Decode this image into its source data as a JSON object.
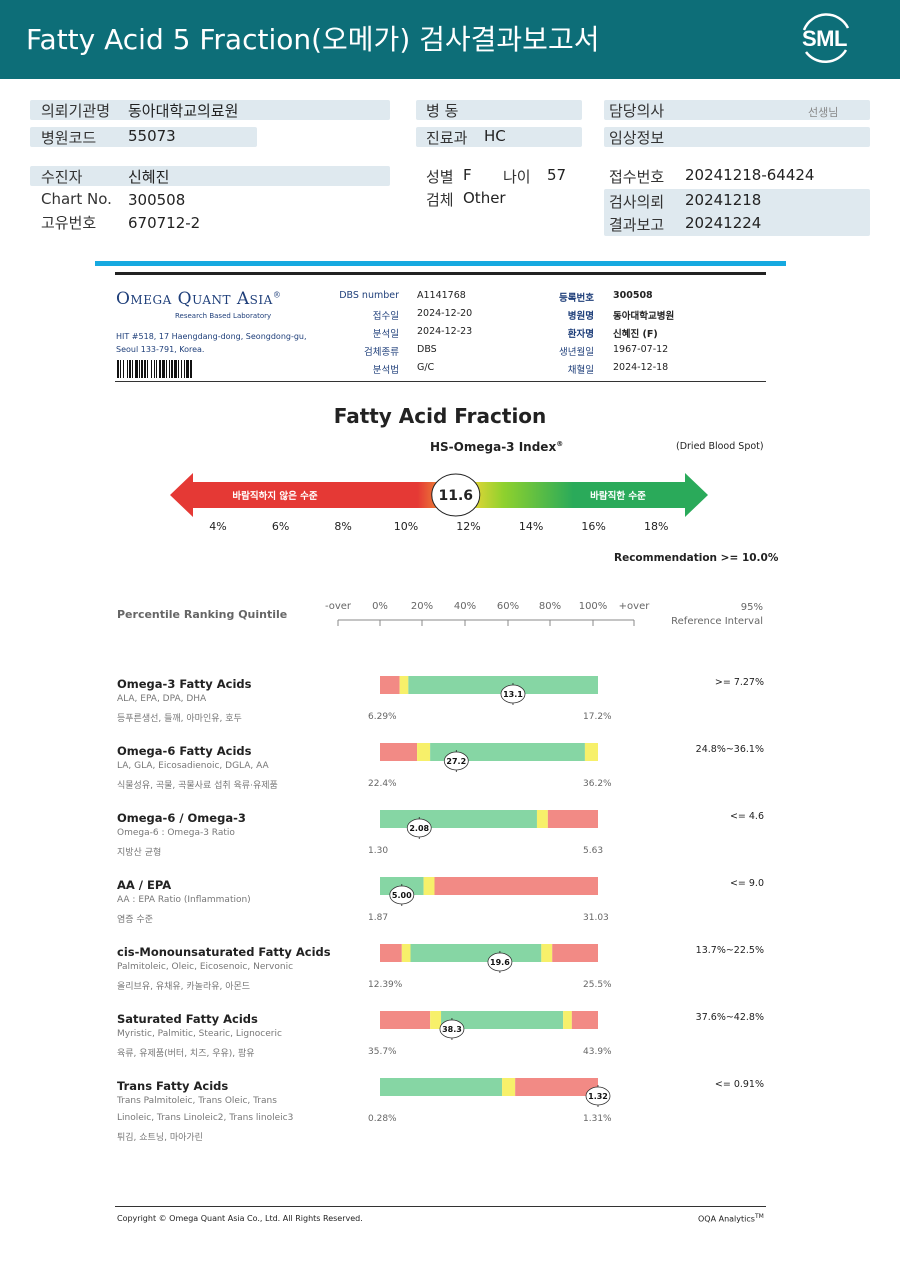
{
  "header": {
    "title": "Fatty Acid 5 Fraction(오메가) 검사결과보고서",
    "logo_text": "SML",
    "background": "#0d6e78"
  },
  "patient": {
    "institution_label": "의뢰기관명",
    "institution_value": "동아대학교의료원",
    "hospital_code_label": "병원코드",
    "hospital_code_value": "55073",
    "ward_label": "병  동",
    "department_label": "진료과",
    "department_value": "HC",
    "doctor_label": "담당의사",
    "doctor_suffix": "선생님",
    "clinical_label": "임상정보",
    "recipient_label": "수진자",
    "recipient_value": "신혜진",
    "chart_label": "Chart No.",
    "chart_value": "300508",
    "unique_label": "고유번호",
    "unique_value": "670712-2",
    "sex_label": "성별",
    "sex_value": "F",
    "age_label": "나이",
    "age_value": "57",
    "specimen_label": "검체",
    "specimen_value": "Other",
    "receipt_label": "접수번호",
    "receipt_value": "20241218-64424",
    "request_label": "검사의뢰",
    "request_value": "20241218",
    "report_label": "결과보고",
    "report_value": "20241224"
  },
  "lab": {
    "name": "Omega Quant Asia",
    "mark": "®",
    "tagline": "Research Based Laboratory",
    "address": "HIT #518, 17 Haengdang-dong, Seongdong-gu, Seoul 133-791, Korea."
  },
  "meta": {
    "dbs_label": "DBS number",
    "dbs_value": "A1141768",
    "received_label": "접수일",
    "received_value": "2024-12-20",
    "analyzed_label": "분석일",
    "analyzed_value": "2024-12-23",
    "specimen_label": "검체종류",
    "specimen_value": "DBS",
    "method_label": "분석법",
    "method_value": "G/C",
    "regno_label": "등록번호",
    "regno_value": "300508",
    "hospital_label": "병원명",
    "hospital_value": "동아대학교병원",
    "patient_label": "환자명",
    "patient_value": "신혜진 (F)",
    "dob_label": "생년월일",
    "dob_value": "1967-07-12",
    "collected_label": "채혈일",
    "collected_value": "2024-12-18"
  },
  "index": {
    "title": "Fatty Acid Fraction",
    "subtitle": "HS-Omega-3 Index",
    "subtitle_mark": "®",
    "note": "(Dried Blood Spot)",
    "value": "11.6",
    "value_num": 11.6,
    "bad_label": "바람직하지 않은 수준",
    "good_label": "바람직한 수준",
    "ticks": [
      "4%",
      "6%",
      "8%",
      "10%",
      "12%",
      "14%",
      "16%",
      "18%"
    ],
    "tick_values": [
      4,
      6,
      8,
      10,
      12,
      14,
      16,
      18
    ],
    "recommendation": "Recommendation  >= 10.0%",
    "colors": {
      "red": "#e53935",
      "yellow": "#f5e63a",
      "green": "#2aaa5a"
    }
  },
  "quintile": {
    "label": "Percentile Ranking Quintile",
    "ticks": [
      "-over",
      "0%",
      "20%",
      "40%",
      "60%",
      "80%",
      "100%",
      "+over"
    ],
    "ref_label_1": "95%",
    "ref_label_2": "Reference Interval"
  },
  "rows": [
    {
      "name": "Omega-3 Fatty Acids",
      "sub": "ALA, EPA, DPA, DHA",
      "food": "등푸른생선, 들깨, 아마인유, 호두",
      "ref": ">= 7.27%",
      "min": "6.29%",
      "max": "17.2%",
      "value": "13.1",
      "marker_pct": 61,
      "segments": [
        [
          "red",
          9
        ],
        [
          "yellow",
          4
        ],
        [
          "green",
          87
        ]
      ]
    },
    {
      "name": "Omega-6 Fatty Acids",
      "sub": "LA, GLA, Eicosadienoic, DGLA, AA",
      "food": "식물성유, 곡물, 곡물사료 섭취 육류·유제품",
      "ref": "24.8%~36.1%",
      "min": "22.4%",
      "max": "36.2%",
      "value": "27.2",
      "marker_pct": 35,
      "segments": [
        [
          "red",
          17
        ],
        [
          "yellow",
          6
        ],
        [
          "green",
          71
        ],
        [
          "yellow",
          6
        ]
      ]
    },
    {
      "name": "Omega-6 / Omega-3",
      "sub": "Omega-6 : Omega-3 Ratio",
      "food": "지방산 균형",
      "ref": "<= 4.6",
      "min": "1.30",
      "max": "5.63",
      "value": "2.08",
      "marker_pct": 18,
      "segments": [
        [
          "green",
          72
        ],
        [
          "yellow",
          5
        ],
        [
          "red",
          23
        ]
      ]
    },
    {
      "name": "AA / EPA",
      "sub": "AA : EPA Ratio (Inflammation)",
      "food": "염증 수준",
      "ref": "<= 9.0",
      "min": "1.87",
      "max": "31.03",
      "value": "5.00",
      "marker_pct": 10,
      "segments": [
        [
          "green",
          20
        ],
        [
          "yellow",
          5
        ],
        [
          "red",
          75
        ]
      ]
    },
    {
      "name": "cis-Monounsaturated Fatty Acids",
      "sub": "Palmitoleic, Oleic, Eicosenoic, Nervonic",
      "food": "올리브유, 유채유, 카놀라유, 아몬드",
      "ref": "13.7%~22.5%",
      "min": "12.39%",
      "max": "25.5%",
      "value": "19.6",
      "marker_pct": 55,
      "segments": [
        [
          "red",
          10
        ],
        [
          "yellow",
          4
        ],
        [
          "green",
          60
        ],
        [
          "yellow",
          5
        ],
        [
          "red",
          21
        ]
      ]
    },
    {
      "name": "Saturated Fatty Acids",
      "sub": "Myristic, Palmitic, Stearic, Lignoceric",
      "food": "육류, 유제품(버터, 치즈, 우유), 팜유",
      "ref": "37.6%~42.8%",
      "min": "35.7%",
      "max": "43.9%",
      "value": "38.3",
      "marker_pct": 33,
      "segments": [
        [
          "red",
          23
        ],
        [
          "yellow",
          5
        ],
        [
          "green",
          56
        ],
        [
          "yellow",
          4
        ],
        [
          "red",
          12
        ]
      ]
    },
    {
      "name": "Trans Fatty Acids",
      "sub": "Trans Palmitoleic, Trans Oleic, Trans",
      "sub2": "Linoleic, Trans Linoleic2, Trans linoleic3",
      "food": "튀김, 쇼트닝, 마아가린",
      "ref": "<= 0.91%",
      "min": "0.28%",
      "max": "1.31%",
      "value": "1.32",
      "marker_pct": 100,
      "segments": [
        [
          "green",
          56
        ],
        [
          "yellow",
          6
        ],
        [
          "red",
          38
        ]
      ]
    }
  ],
  "footer": {
    "copyright": "Copyright © Omega Quant Asia Co., Ltd.  All Rights Reserved.",
    "brand": "OQA Analytics",
    "brand_mark": "TM"
  }
}
